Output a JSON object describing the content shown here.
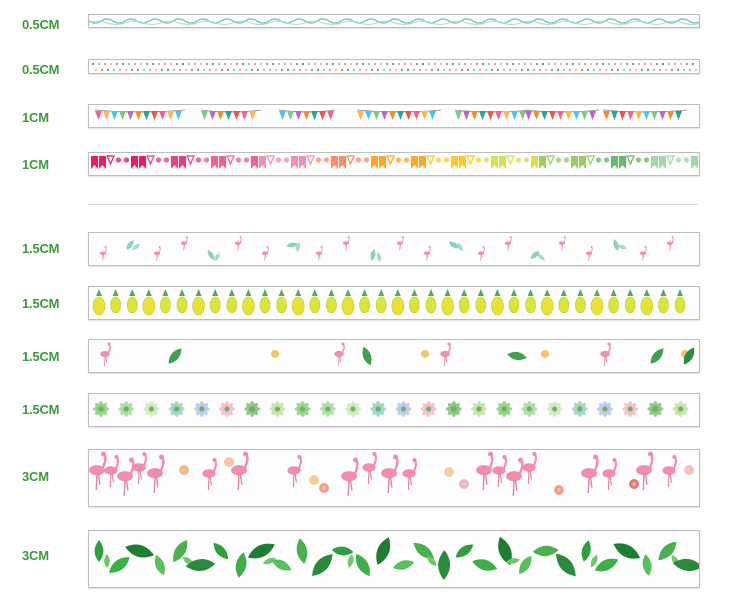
{
  "strips": [
    {
      "label": "0.5CM",
      "pattern": "green-wave",
      "color": "#6fc7a5"
    },
    {
      "label": "0.5CM",
      "pattern": "dots",
      "color": "#555555"
    },
    {
      "label": "1CM",
      "pattern": "bunting",
      "color": "#f48c2f"
    },
    {
      "label": "1CM",
      "pattern": "gradient-flags",
      "color": "#f06292"
    },
    {
      "label": "1.5CM",
      "pattern": "flamingo-leaves",
      "color": "#f48fb1"
    },
    {
      "label": "1.5CM",
      "pattern": "pineapples",
      "color": "#d6df3a"
    },
    {
      "label": "1.5CM",
      "pattern": "flamingo-tropical",
      "color": "#e88ab5"
    },
    {
      "label": "1.5CM",
      "pattern": "succulents",
      "color": "#8fca8f"
    },
    {
      "label": "3CM",
      "pattern": "flamingo-flowers",
      "color": "#f48fb1"
    },
    {
      "label": "3CM",
      "pattern": "tropical-leaves",
      "color": "#2e9e3e"
    }
  ]
}
